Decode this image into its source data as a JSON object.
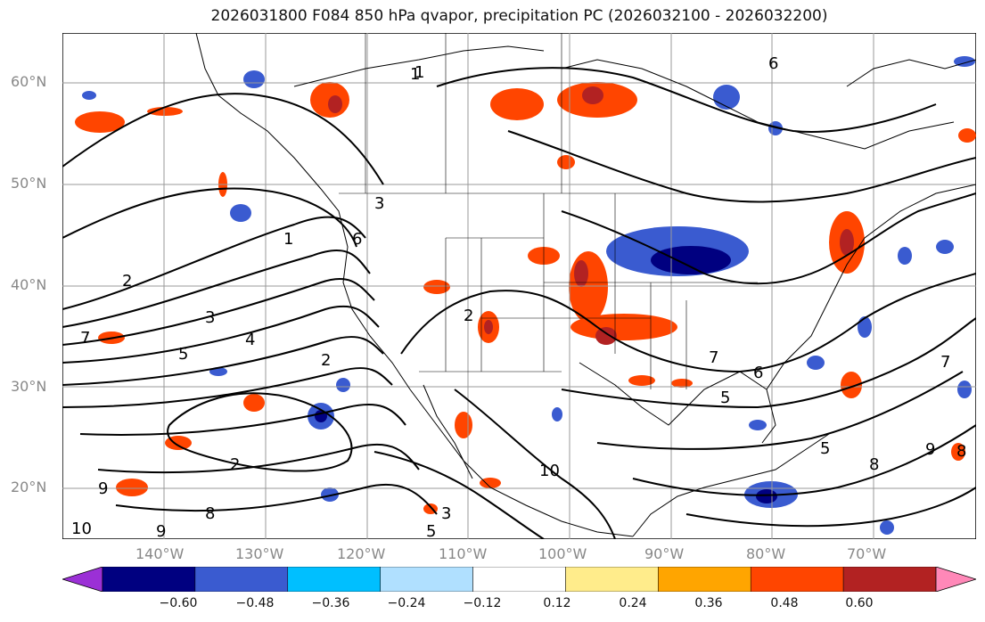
{
  "title": "2026031800 F084 850 hPa qvapor, precipitation PC (2026032100 - 2026032200)",
  "latitudes": [
    "60°N",
    "50°N",
    "40°N",
    "30°N",
    "20°N"
  ],
  "longitudes": [
    "140°W",
    "130°W",
    "120°W",
    "110°W",
    "100°W",
    "90°W",
    "80°W",
    "70°W"
  ],
  "colorbar": {
    "colors": [
      "#9b30d6",
      "#000080",
      "#3a5bd0",
      "#00bfff",
      "#b0e0ff",
      "#ffffff",
      "#ffec8b",
      "#ffa500",
      "#ff4500",
      "#b22222",
      "#ff88b8"
    ],
    "ticks": [
      "−0.60",
      "−0.48",
      "−0.36",
      "−0.24",
      "−0.12",
      "0.12",
      "0.24",
      "0.36",
      "0.48",
      "0.60"
    ]
  },
  "contour_labels": [
    "1",
    "2",
    "3",
    "4",
    "5",
    "6",
    "7",
    "8",
    "9",
    "10",
    "6",
    "1",
    "2",
    "3",
    "5",
    "2",
    "9",
    "8",
    "7",
    "5",
    "10",
    "9",
    "8",
    "7",
    "6",
    "5",
    "2",
    "3",
    "1"
  ]
}
